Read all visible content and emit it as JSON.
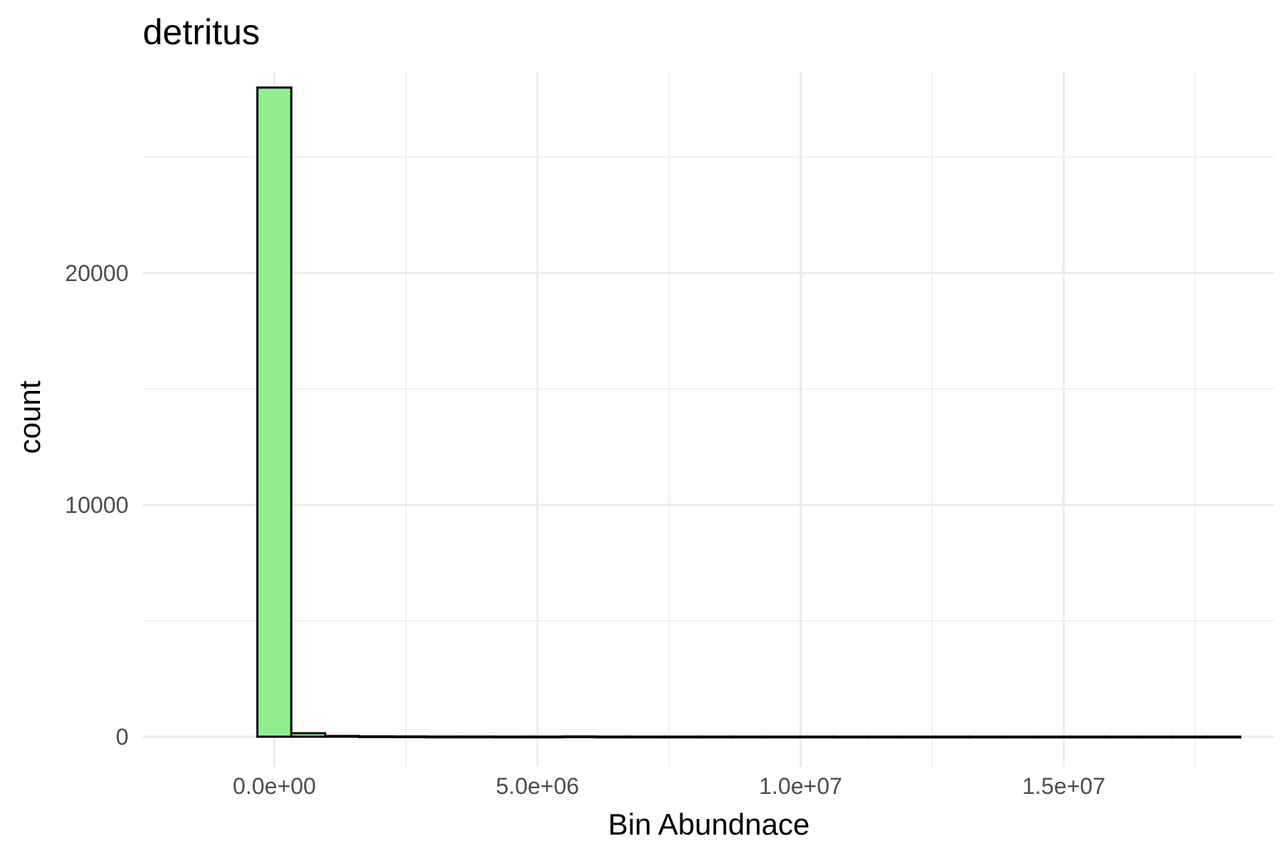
{
  "chart_data": {
    "type": "bar",
    "title": "detritus",
    "xlabel": "Bin Abundnace",
    "ylabel": "count",
    "bin_edges": [
      -322000,
      322000,
      966000,
      1610000,
      2254000,
      2898000,
      3542000,
      4186000,
      4830000,
      5474000,
      6118000,
      6762000,
      7406000,
      8050000,
      8694000,
      9338000,
      9982000,
      10626000,
      11270000,
      11914000,
      12558000,
      13202000,
      13846000,
      14490000,
      15134000,
      15778000,
      16422000,
      17066000,
      17710000,
      18354000
    ],
    "values": [
      28000,
      150,
      30,
      15,
      10,
      5,
      5,
      3,
      3,
      10,
      3,
      2,
      2,
      2,
      2,
      2,
      2,
      1,
      1,
      1,
      1,
      1,
      1,
      1,
      1,
      1,
      1,
      1,
      1
    ],
    "xlim": [
      -2500000,
      19000000
    ],
    "ylim": [
      -1300000,
      30000
    ],
    "ylim_display": [
      -1300,
      28700
    ],
    "x_ticks": [
      0,
      5000000,
      10000000,
      15000000
    ],
    "x_tick_labels": [
      "0.0e+00",
      "5.0e+06",
      "1.0e+07",
      "1.5e+07"
    ],
    "x_minor_ticks": [
      2500000,
      7500000,
      12500000,
      17500000
    ],
    "y_ticks": [
      0,
      10000,
      20000
    ],
    "y_tick_labels": [
      "0",
      "10000",
      "20000"
    ],
    "y_minor_ticks": [
      5000,
      15000,
      25000
    ],
    "grid": true,
    "legend": "none",
    "bar_fill": "#90ee90",
    "bar_stroke": "#000000",
    "grid_color": "#ebebeb"
  }
}
